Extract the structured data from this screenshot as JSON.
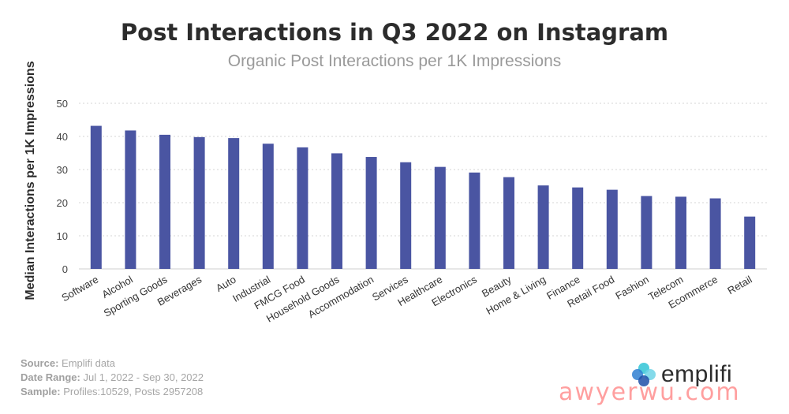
{
  "title": "Post Interactions in Q3 2022 on Instagram",
  "subtitle": "Organic Post Interactions per 1K Impressions",
  "chart_data": {
    "type": "bar",
    "title": "Post Interactions in Q3 2022 on Instagram",
    "subtitle": "Organic Post Interactions per 1K Impressions",
    "xlabel": "",
    "ylabel": "Median Interactions per 1K Impressions",
    "ylim": [
      0,
      50
    ],
    "yticks": [
      0,
      10,
      20,
      30,
      40,
      50
    ],
    "grid": true,
    "bar_color": "#4a55a2",
    "categories": [
      "Software",
      "Alcohol",
      "Sporting Goods",
      "Beverages",
      "Auto",
      "Industrial",
      "FMCG Food",
      "Household Goods",
      "Accommodation",
      "Services",
      "Healthcare",
      "Electronics",
      "Beauty",
      "Home & Living",
      "Finance",
      "Retail Food",
      "Fashion",
      "Telecom",
      "Ecommerce",
      "Retail"
    ],
    "values": [
      43.2,
      41.8,
      40.5,
      39.8,
      39.5,
      37.8,
      36.7,
      34.9,
      33.8,
      32.2,
      30.8,
      29.1,
      27.7,
      25.2,
      24.6,
      23.9,
      22.0,
      21.8,
      21.3,
      15.8
    ]
  },
  "footer": {
    "source_label": "Source:",
    "source_value": "Emplifi data",
    "date_label": "Date Range:",
    "date_value": "Jul 1, 2022 - Sep 30, 2022",
    "sample_label": "Sample:",
    "sample_value": "Profiles:10529, Posts 2957208"
  },
  "brand": {
    "logo_text": "emplifi"
  },
  "watermark": "awyerwu.com"
}
